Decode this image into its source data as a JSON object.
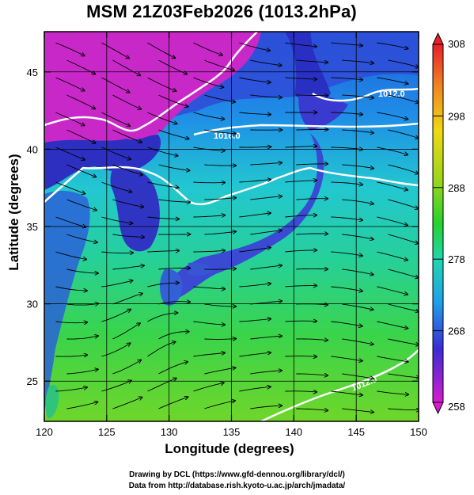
{
  "title": "MSM 21Z03Feb2026 (1013.2hPa)",
  "axes": {
    "xlabel": "Longitude (degrees)",
    "ylabel": "Latitude  (degrees)",
    "xlim": [
      120,
      150
    ],
    "ylim": [
      22.4,
      47.6
    ],
    "xticks": [
      "120",
      "125",
      "130",
      "135",
      "140",
      "145",
      "150"
    ],
    "yticks": [
      "25",
      "30",
      "35",
      "40",
      "45"
    ],
    "grid": true
  },
  "colorbar": {
    "ticks": [
      "308",
      "298",
      "288",
      "278",
      "268",
      "258"
    ],
    "range": [
      258,
      308
    ],
    "colors": [
      "#d81ad0",
      "#3a2cd6",
      "#1fa0ea",
      "#20d6b0",
      "#25d22c",
      "#9ad61a",
      "#f0d814",
      "#f08820",
      "#e8202a"
    ]
  },
  "contours": [
    {
      "label": "1016.0"
    },
    {
      "label": "1012.0"
    },
    {
      "label": "1012.0"
    }
  ],
  "credits": {
    "line1": "Drawing by DCL (https://www.gfd-dennou.org/library/dcl/)",
    "line2": "Data from http://database.rish.kyoto-u.ac.jp/arch/jmadata/"
  },
  "colors": {
    "sea_warm": "#5cd62a",
    "sea_mid": "#2ed1c4",
    "land_cold": "#2d3fc8",
    "land_frigid": "#c02ab8",
    "contour": "#ffffff"
  }
}
